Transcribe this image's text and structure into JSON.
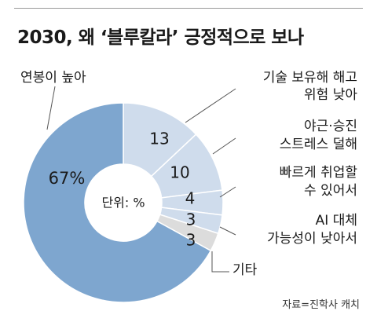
{
  "title": "2030, 왜 ‘블루칼라’ 긍정적으로 보나",
  "source": "자료=진학사 캐치",
  "chart_data": {
    "type": "pie",
    "donut": true,
    "unit_label": "단위: %",
    "slices": [
      {
        "label": "연봉이 높아서",
        "value": 67,
        "display": "67%",
        "color": "#7ea6cf"
      },
      {
        "label": "기술 보유해 해고 위험 낮아",
        "value": 13,
        "display": "13",
        "color": "#cfdcec"
      },
      {
        "label": "야근·승진 스트레스 덜해",
        "value": 10,
        "display": "10",
        "color": "#cfdcec"
      },
      {
        "label": "빠르게 취업할 수 있어서",
        "value": 4,
        "display": "4",
        "color": "#cfdcec"
      },
      {
        "label": "AI 대체 가능성이 낮아서",
        "value": 3,
        "display": "3",
        "color": "#cfdcec"
      },
      {
        "label": "기타",
        "value": 3,
        "display": "3",
        "color": "#dcdcdc"
      }
    ]
  }
}
